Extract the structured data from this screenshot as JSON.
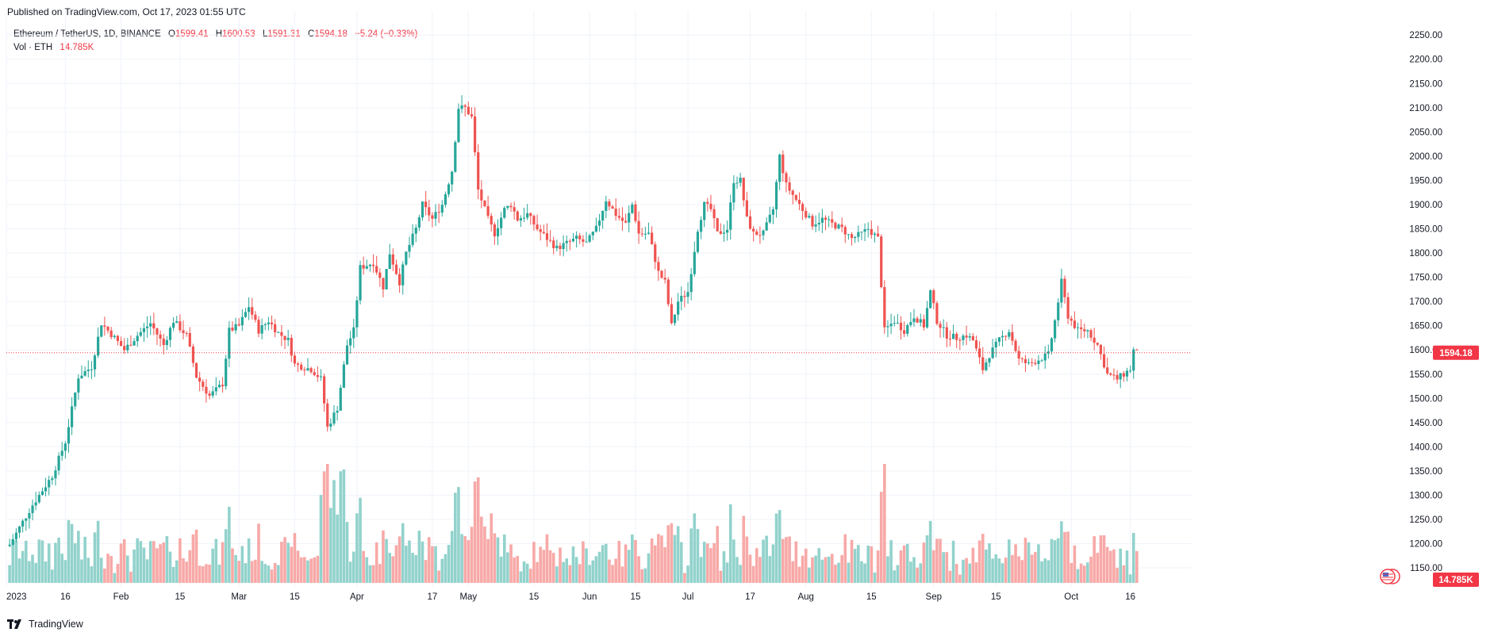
{
  "header": {
    "published": "Published on TradingView.com, Oct 17, 2023 01:55 UTC"
  },
  "legend": {
    "symbol": "Ethereum / TetherUS, 1D, BINANCE",
    "o_label": "O",
    "o_value": "1599.41",
    "h_label": "H",
    "h_value": "1600.53",
    "l_label": "L",
    "l_value": "1591.31",
    "c_label": "C",
    "c_value": "1594.18",
    "change": "−5.24 (−0.33%)",
    "vol_label": "Vol · ETH",
    "vol_value": "14.785K"
  },
  "footer": {
    "brand": "TradingView",
    "logo_icon": "tradingview-logo-icon"
  },
  "colors": {
    "up": "#26a69a",
    "down": "#ef5350",
    "vol_up": "#92d2cc",
    "vol_down": "#f7a9a7",
    "last_price_bg": "#f23645",
    "vol_badge_bg": "#f23645",
    "grid": "#f0f3fa"
  },
  "chart_data": {
    "type": "candlestick",
    "interval": "1D",
    "y_axis": {
      "ticks": [
        1150,
        1200,
        1250,
        1300,
        1350,
        1400,
        1450,
        1500,
        1550,
        1600,
        1650,
        1700,
        1750,
        1800,
        1850,
        1900,
        1950,
        2000,
        2050,
        2100,
        2150,
        2200,
        2250
      ],
      "position": "right",
      "unit": "USDT"
    },
    "x_axis": {
      "labels": [
        "2023",
        "16",
        "Feb",
        "15",
        "Mar",
        "15",
        "Apr",
        "17",
        "May",
        "15",
        "Jun",
        "15",
        "Jul",
        "17",
        "Aug",
        "15",
        "Sep",
        "15",
        "Oct",
        "16"
      ]
    },
    "last_price": "1594.18",
    "last_volume": "14.785K",
    "grid": true,
    "anchors": [
      [
        1,
        1198
      ],
      [
        8,
        1280
      ],
      [
        14,
        1340
      ],
      [
        18,
        1410
      ],
      [
        22,
        1545
      ],
      [
        26,
        1565
      ],
      [
        29,
        1655
      ],
      [
        33,
        1625
      ],
      [
        36,
        1600
      ],
      [
        40,
        1630
      ],
      [
        44,
        1655
      ],
      [
        48,
        1610
      ],
      [
        51,
        1660
      ],
      [
        55,
        1630
      ],
      [
        58,
        1545
      ],
      [
        62,
        1505
      ],
      [
        66,
        1530
      ],
      [
        68,
        1640
      ],
      [
        71,
        1650
      ],
      [
        74,
        1690
      ],
      [
        77,
        1640
      ],
      [
        80,
        1660
      ],
      [
        83,
        1635
      ],
      [
        86,
        1620
      ],
      [
        88,
        1570
      ],
      [
        93,
        1560
      ],
      [
        96,
        1540
      ],
      [
        98,
        1440
      ],
      [
        101,
        1480
      ],
      [
        104,
        1610
      ],
      [
        106,
        1640
      ],
      [
        108,
        1770
      ],
      [
        112,
        1780
      ],
      [
        115,
        1730
      ],
      [
        117,
        1800
      ],
      [
        120,
        1740
      ],
      [
        122,
        1800
      ],
      [
        125,
        1850
      ],
      [
        127,
        1900
      ],
      [
        130,
        1870
      ],
      [
        133,
        1900
      ],
      [
        136,
        1970
      ],
      [
        138,
        2100
      ],
      [
        140,
        2100
      ],
      [
        142,
        2080
      ],
      [
        144,
        1930
      ],
      [
        147,
        1870
      ],
      [
        149,
        1840
      ],
      [
        152,
        1890
      ],
      [
        154,
        1900
      ],
      [
        156,
        1870
      ],
      [
        159,
        1880
      ],
      [
        162,
        1850
      ],
      [
        165,
        1830
      ],
      [
        168,
        1810
      ],
      [
        171,
        1820
      ],
      [
        174,
        1830
      ],
      [
        177,
        1820
      ],
      [
        180,
        1850
      ],
      [
        183,
        1910
      ],
      [
        186,
        1880
      ],
      [
        189,
        1860
      ],
      [
        191,
        1900
      ],
      [
        193,
        1840
      ],
      [
        196,
        1840
      ],
      [
        199,
        1760
      ],
      [
        201,
        1740
      ],
      [
        203,
        1650
      ],
      [
        205,
        1700
      ],
      [
        208,
        1720
      ],
      [
        211,
        1850
      ],
      [
        213,
        1900
      ],
      [
        215,
        1890
      ],
      [
        217,
        1840
      ],
      [
        220,
        1850
      ],
      [
        222,
        1950
      ],
      [
        224,
        1950
      ],
      [
        226,
        1870
      ],
      [
        228,
        1840
      ],
      [
        231,
        1840
      ],
      [
        234,
        1890
      ],
      [
        236,
        2000
      ],
      [
        238,
        1940
      ],
      [
        240,
        1920
      ],
      [
        243,
        1890
      ],
      [
        246,
        1860
      ],
      [
        249,
        1870
      ],
      [
        252,
        1860
      ],
      [
        255,
        1850
      ],
      [
        258,
        1830
      ],
      [
        261,
        1840
      ],
      [
        263,
        1850
      ],
      [
        266,
        1830
      ],
      [
        268,
        1640
      ],
      [
        271,
        1660
      ],
      [
        274,
        1640
      ],
      [
        277,
        1670
      ],
      [
        280,
        1650
      ],
      [
        282,
        1720
      ],
      [
        284,
        1660
      ],
      [
        287,
        1630
      ],
      [
        290,
        1625
      ],
      [
        293,
        1630
      ],
      [
        295,
        1620
      ],
      [
        298,
        1560
      ],
      [
        300,
        1590
      ],
      [
        303,
        1620
      ],
      [
        306,
        1640
      ],
      [
        309,
        1580
      ],
      [
        312,
        1570
      ],
      [
        315,
        1580
      ],
      [
        318,
        1590
      ],
      [
        320,
        1660
      ],
      [
        322,
        1740
      ],
      [
        324,
        1670
      ],
      [
        327,
        1640
      ],
      [
        330,
        1640
      ],
      [
        333,
        1610
      ],
      [
        336,
        1550
      ],
      [
        339,
        1540
      ],
      [
        341,
        1550
      ],
      [
        343,
        1560
      ],
      [
        344,
        1599
      ],
      [
        345,
        1594
      ]
    ]
  }
}
